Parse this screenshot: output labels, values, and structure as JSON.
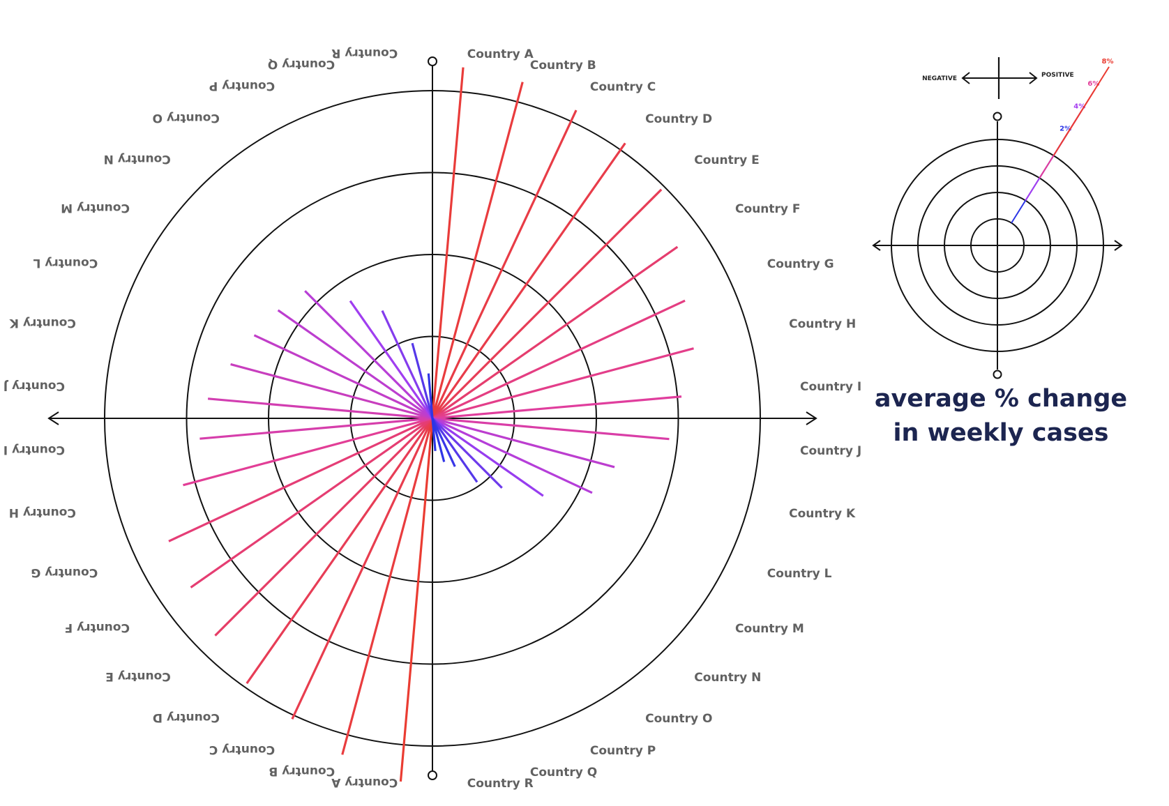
{
  "chart_data": {
    "type": "radial-bar",
    "title_lines": [
      "average % change",
      "in weekly cases"
    ],
    "categories": [
      "Country A",
      "Country B",
      "Country C",
      "Country D",
      "Country E",
      "Country F",
      "Country G",
      "Country H",
      "Country I",
      "Country J",
      "Country K",
      "Country L",
      "Country M",
      "Country N",
      "Country O",
      "Country P",
      "Country Q",
      "Country R"
    ],
    "rings": [
      2,
      4,
      6,
      8
    ],
    "series": [
      {
        "name": "positive",
        "values": [
          8.6,
          8.5,
          8.3,
          8.2,
          7.9,
          7.3,
          6.8,
          6.6,
          6.1,
          5.8,
          4.6,
          4.3,
          3.3,
          2.4,
          1.9,
          1.3,
          1.1,
          0.8
        ]
      },
      {
        "name": "negative",
        "values": [
          8.9,
          8.5,
          8.1,
          7.9,
          7.5,
          7.2,
          7.1,
          6.3,
          5.7,
          5.5,
          5.1,
          4.8,
          4.6,
          4.4,
          3.5,
          2.9,
          1.9,
          1.1
        ]
      }
    ],
    "grid": true,
    "axis_arrows": true
  },
  "legend": {
    "negative_label": "NEGATIVE",
    "positive_label": "POSITIVE",
    "ring_values": [
      "2%",
      "4%",
      "6%",
      "8%"
    ],
    "ring_colors": [
      "#2b35e6",
      "#a53ef0",
      "#e23e9a",
      "#ea3c32"
    ]
  }
}
